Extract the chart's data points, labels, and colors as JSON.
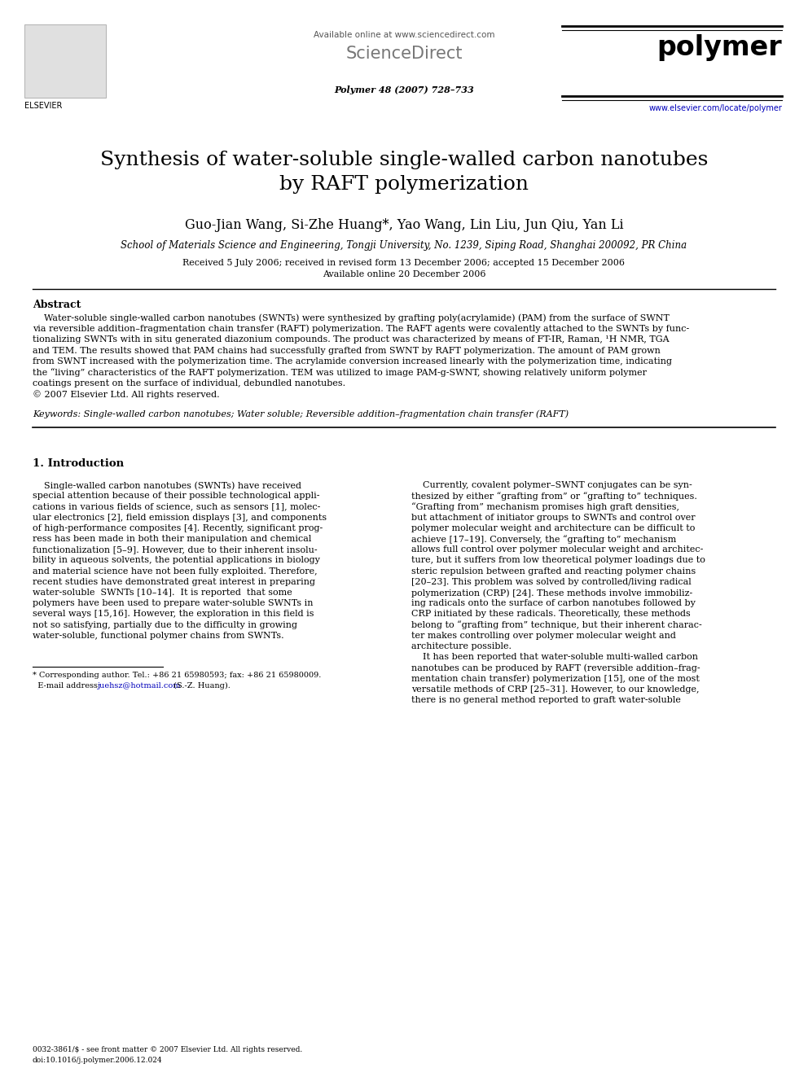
{
  "bg_color": "#ffffff",
  "available_online": "Available online at www.sciencedirect.com",
  "sciencedirect": "ScienceDirect",
  "journal": "polymer",
  "journal_info": "Polymer 48 (2007) 728–733",
  "journal_url": "www.elsevier.com/locate/polymer",
  "title_line1": "Synthesis of water-soluble single-walled carbon nanotubes",
  "title_line2": "by RAFT polymerization",
  "authors": "Guo-Jian Wang, Si-Zhe Huang*, Yao Wang, Lin Liu, Jun Qiu, Yan Li",
  "affiliation": "School of Materials Science and Engineering, Tongji University, No. 1239, Siping Road, Shanghai 200092, PR China",
  "received": "Received 5 July 2006; received in revised form 13 December 2006; accepted 15 December 2006",
  "available": "Available online 20 December 2006",
  "abstract_title": "Abstract",
  "abstract_lines": [
    "    Water-soluble single-walled carbon nanotubes (SWNTs) were synthesized by grafting poly(acrylamide) (PAM) from the surface of SWNT",
    "via reversible addition–fragmentation chain transfer (RAFT) polymerization. The RAFT agents were covalently attached to the SWNTs by func-",
    "tionalizing SWNTs with in situ generated diazonium compounds. The product was characterized by means of FT-IR, Raman, ¹H NMR, TGA",
    "and TEM. The results showed that PAM chains had successfully grafted from SWNT by RAFT polymerization. The amount of PAM grown",
    "from SWNT increased with the polymerization time. The acrylamide conversion increased linearly with the polymerization time, indicating",
    "the “living” characteristics of the RAFT polymerization. TEM was utilized to image PAM-g-SWNT, showing relatively uniform polymer",
    "coatings present on the surface of individual, debundled nanotubes.",
    "© 2007 Elsevier Ltd. All rights reserved."
  ],
  "keywords": "Keywords: Single-walled carbon nanotubes; Water soluble; Reversible addition–fragmentation chain transfer (RAFT)",
  "section1_title": "1. Introduction",
  "col_left_lines": [
    "    Single-walled carbon nanotubes (SWNTs) have received",
    "special attention because of their possible technological appli-",
    "cations in various fields of science, such as sensors [1], molec-",
    "ular electronics [2], field emission displays [3], and components",
    "of high-performance composites [4]. Recently, significant prog-",
    "ress has been made in both their manipulation and chemical",
    "functionalization [5–9]. However, due to their inherent insolu-",
    "bility in aqueous solvents, the potential applications in biology",
    "and material science have not been fully exploited. Therefore,",
    "recent studies have demonstrated great interest in preparing",
    "water-soluble  SWNTs [10–14].  It is reported  that some",
    "polymers have been used to prepare water-soluble SWNTs in",
    "several ways [15,16]. However, the exploration in this field is",
    "not so satisfying, partially due to the difficulty in growing",
    "water-soluble, functional polymer chains from SWNTs."
  ],
  "col_right_lines": [
    "    Currently, covalent polymer–SWNT conjugates can be syn-",
    "thesized by either “grafting from” or “grafting to” techniques.",
    "“Grafting from” mechanism promises high graft densities,",
    "but attachment of initiator groups to SWNTs and control over",
    "polymer molecular weight and architecture can be difficult to",
    "achieve [17–19]. Conversely, the “grafting to” mechanism",
    "allows full control over polymer molecular weight and architec-",
    "ture, but it suffers from low theoretical polymer loadings due to",
    "steric repulsion between grafted and reacting polymer chains",
    "[20–23]. This problem was solved by controlled/living radical",
    "polymerization (CRP) [24]. These methods involve immobiliz-",
    "ing radicals onto the surface of carbon nanotubes followed by",
    "CRP initiated by these radicals. Theoretically, these methods",
    "belong to “grafting from” technique, but their inherent charac-",
    "ter makes controlling over polymer molecular weight and",
    "architecture possible.",
    "    It has been reported that water-soluble multi-walled carbon",
    "nanotubes can be produced by RAFT (reversible addition–frag-",
    "mentation chain transfer) polymerization [15], one of the most",
    "versatile methods of CRP [25–31]. However, to our knowledge,",
    "there is no general method reported to graft water-soluble"
  ],
  "footnote_line": "* Corresponding author. Tel.: +86 21 65980593; fax: +86 21 65980009.",
  "footnote_email_pre": "  E-mail address: ",
  "footnote_email": "juehsz@hotmail.com",
  "footnote_email_post": " (S.-Z. Huang).",
  "footer1": "0032-3861/$ - see front matter © 2007 Elsevier Ltd. All rights reserved.",
  "footer2": "doi:10.1016/j.polymer.2006.12.024"
}
